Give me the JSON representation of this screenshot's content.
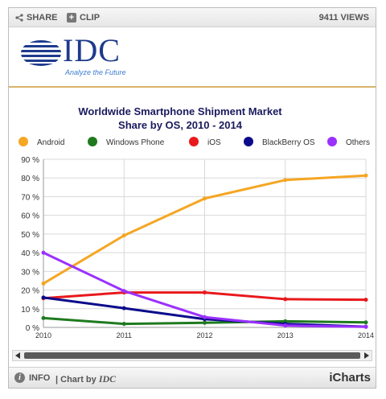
{
  "toolbar": {
    "share_label": "SHARE",
    "clip_label": "CLIP",
    "views_label": "9411 VIEWS"
  },
  "logo": {
    "brand": "IDC",
    "tagline": "Analyze the Future"
  },
  "footer": {
    "info_label": "INFO",
    "chart_by_prefix": "| Chart by ",
    "chart_by_brand": "IDC",
    "icharts_label": "iCharts"
  },
  "colors": {
    "Android": "#f5a623",
    "Windows Phone": "#1f7a1f",
    "iOS": "#e8191d",
    "BlackBerry OS": "#0b0b8c",
    "Others": "#9b30ff"
  },
  "chart_data": {
    "type": "line",
    "title": "Worldwide Smartphone Shipment Market Share by OS, 2010 - 2014",
    "title_lines": [
      "Worldwide Smartphone Shipment Market",
      "Share by OS, 2010 - 2014"
    ],
    "legend_position": "top",
    "grid": true,
    "x": [
      "2010",
      "2011",
      "2012",
      "2013",
      "2014"
    ],
    "ylim": [
      0,
      90
    ],
    "yticks": [
      "0 %",
      "10 %",
      "20 %",
      "30 %",
      "40 %",
      "50 %",
      "60 %",
      "70 %",
      "80 %",
      "90 %"
    ],
    "series": [
      {
        "name": "Android",
        "values": [
          23.5,
          49.2,
          69.0,
          78.9,
          81.3
        ]
      },
      {
        "name": "Windows Phone",
        "values": [
          5.0,
          1.9,
          2.5,
          3.3,
          2.7
        ]
      },
      {
        "name": "iOS",
        "values": [
          15.6,
          18.7,
          18.7,
          15.1,
          14.8
        ]
      },
      {
        "name": "BlackBerry OS",
        "values": [
          16.0,
          10.3,
          4.4,
          1.9,
          0.4
        ]
      },
      {
        "name": "Others",
        "values": [
          40.0,
          19.5,
          5.5,
          1.0,
          0.3
        ]
      }
    ]
  }
}
